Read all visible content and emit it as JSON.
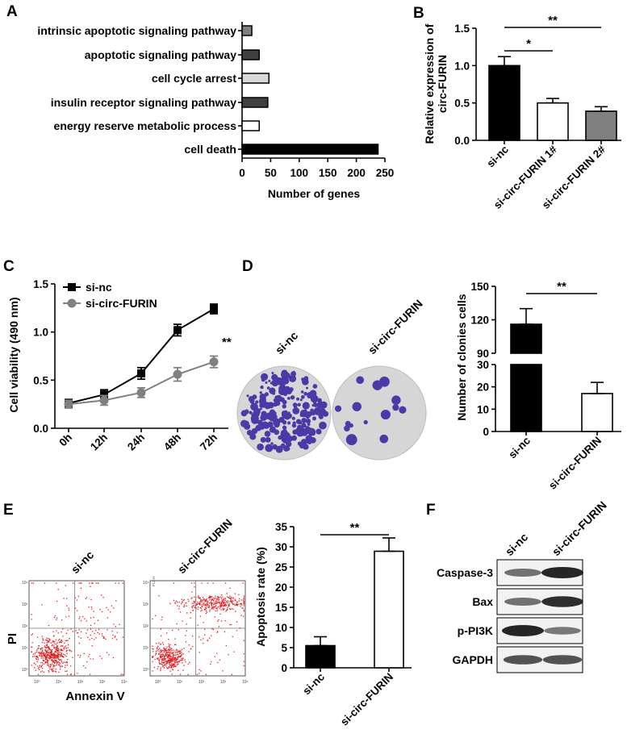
{
  "panel_labels": {
    "a": "A",
    "b": "B",
    "c": "C",
    "d": "D",
    "e": "E",
    "f": "F"
  },
  "colors": {
    "black": "#000000",
    "white": "#ffffff",
    "gray": "#808080",
    "light_gray": "#d9d9d9",
    "dark_gray": "#404040",
    "medium_gray": "#7f7f7f",
    "red": "#e31a1c",
    "purple": "#4a3aa8"
  },
  "chart_data": [
    {
      "id": "A",
      "type": "bar",
      "orientation": "horizontal",
      "categories": [
        "intrinsic apoptotic signaling pathway",
        "apoptotic signaling pathway",
        "cell cycle arrest",
        "insulin receptor signaling pathway",
        "energy reserve metabolic process",
        "cell death"
      ],
      "values": [
        17,
        30,
        47,
        45,
        30,
        238
      ],
      "fills": [
        "#7f7f7f",
        "#404040",
        "#d9d9d9",
        "#404040",
        "#ffffff",
        "#000000"
      ],
      "xlabel": "Number of genes",
      "xlim": [
        0,
        250
      ],
      "xticks": [
        "0",
        "50",
        "100",
        "150",
        "200",
        "250"
      ]
    },
    {
      "id": "B",
      "type": "bar",
      "categories": [
        "si-nc",
        "si-circ-FURIN 1#",
        "si-circ-FURIN 2#"
      ],
      "values": [
        1.0,
        0.5,
        0.39
      ],
      "errors": [
        0.12,
        0.06,
        0.06
      ],
      "fills": [
        "#000000",
        "#ffffff",
        "#808080"
      ],
      "ylabel_lines": [
        "Relative expression of",
        "circ-FURIN"
      ],
      "ylim": [
        0,
        1.5
      ],
      "yticks": [
        "0.0",
        "0.5",
        "1.0",
        "1.5"
      ],
      "significance": [
        {
          "from": 0,
          "to": 1,
          "label": "*"
        },
        {
          "from": 0,
          "to": 2,
          "label": "**"
        }
      ]
    },
    {
      "id": "C",
      "type": "line",
      "x": [
        "0h",
        "12h",
        "24h",
        "48h",
        "72h"
      ],
      "series": [
        {
          "name": "si-nc",
          "values": [
            0.26,
            0.35,
            0.57,
            1.02,
            1.24
          ],
          "errors": [
            0.04,
            0.05,
            0.06,
            0.06,
            0.05
          ],
          "color": "#000000",
          "marker": "square"
        },
        {
          "name": "si-circ-FURIN",
          "values": [
            0.25,
            0.29,
            0.37,
            0.56,
            0.69
          ],
          "errors": [
            0.04,
            0.05,
            0.05,
            0.07,
            0.06
          ],
          "color": "#808080",
          "marker": "circle"
        }
      ],
      "ylabel": "Cell viability (490 nm)",
      "ylim": [
        0,
        1.5
      ],
      "yticks": [
        "0.0",
        "0.5",
        "1.0",
        "1.5"
      ],
      "annotation": "**"
    },
    {
      "id": "D",
      "type": "bar",
      "broken_axis": true,
      "categories": [
        "si-nc",
        "si-circ-FURIN"
      ],
      "values": [
        116,
        17
      ],
      "errors": [
        14,
        5
      ],
      "fills": [
        "#000000",
        "#ffffff"
      ],
      "ylabel": "Number of clonies cells",
      "yticks_low": [
        "0",
        "10",
        "20",
        "30"
      ],
      "yticks_high": [
        "90",
        "120",
        "150"
      ],
      "significance": [
        {
          "from": 0,
          "to": 1,
          "label": "**"
        }
      ]
    },
    {
      "id": "E",
      "type": "bar",
      "categories": [
        "si-nc",
        "si-circ-FURIN"
      ],
      "values": [
        5.5,
        28.9
      ],
      "errors": [
        2.2,
        3.3
      ],
      "fills": [
        "#000000",
        "#ffffff"
      ],
      "ylabel": "Apoptosis rate (%)",
      "ylim": [
        0,
        35
      ],
      "yticks": [
        "0",
        "5",
        "10",
        "15",
        "20",
        "25",
        "30",
        "35"
      ],
      "significance": [
        {
          "from": 0,
          "to": 1,
          "label": "**"
        }
      ]
    }
  ],
  "colony": {
    "labels": [
      "si-nc",
      "si-circ-FURIN"
    ]
  },
  "flow": {
    "labels": [
      "si-nc",
      "si-circ-FURIN"
    ],
    "xlabel": "Annexin V",
    "ylabel": "PI",
    "axis_label_small": "FL2-H",
    "ticks": [
      "10⁰",
      "10¹",
      "10²",
      "10³",
      "10⁴"
    ]
  },
  "western": {
    "columns": [
      "si-nc",
      "si-circ-FURIN"
    ],
    "rows": [
      {
        "label": "Caspase-3",
        "bands": [
          0.5,
          1.0
        ]
      },
      {
        "label": "Bax",
        "bands": [
          0.5,
          0.95
        ]
      },
      {
        "label": "p-PI3K",
        "bands": [
          1.0,
          0.45
        ]
      },
      {
        "label": "GAPDH",
        "bands": [
          0.7,
          0.7
        ]
      }
    ]
  }
}
